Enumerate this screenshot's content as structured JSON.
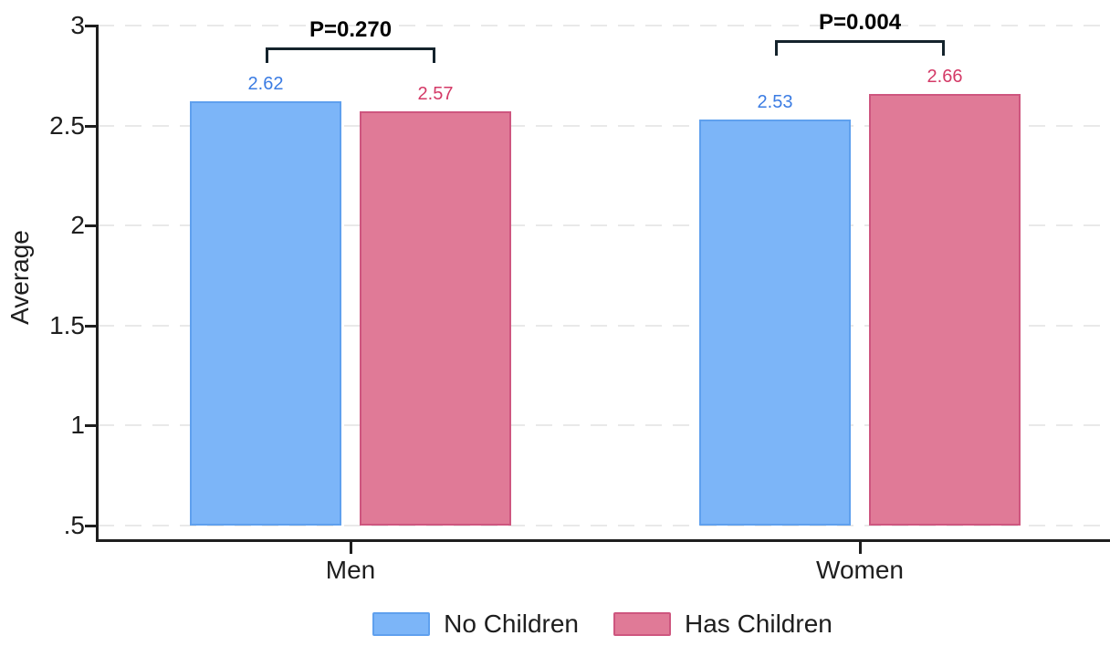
{
  "chart_data": {
    "type": "bar",
    "title": "",
    "ylabel": "Average",
    "categories": [
      "Men",
      "Women"
    ],
    "series": [
      {
        "name": "No Children",
        "values": [
          2.62,
          2.53
        ],
        "value_labels": [
          "2.62",
          "2.53"
        ],
        "fill": "#7CB5F8",
        "border": "#5FA0EE",
        "label_color": "#3B7CE3"
      },
      {
        "name": "Has Children",
        "values": [
          2.57,
          2.66
        ],
        "value_labels": [
          "2.57",
          "2.66"
        ],
        "fill": "#E07A97",
        "border": "#CE567F",
        "label_color": "#D43A67"
      }
    ],
    "annotations": [
      {
        "category": "Men",
        "text": "P=0.270"
      },
      {
        "category": "Women",
        "text": "P=0.004"
      }
    ],
    "yticks": [
      {
        "label": ".5",
        "value": 0.5
      },
      {
        "label": "1",
        "value": 1
      },
      {
        "label": "1.5",
        "value": 1.5
      },
      {
        "label": "2",
        "value": 2
      },
      {
        "label": "2.5",
        "value": 2.5
      },
      {
        "label": "3",
        "value": 3
      }
    ],
    "ylim": [
      0.5,
      3
    ],
    "grid": "horizontal-dashed",
    "legend_position": "bottom-center",
    "colors": {
      "axis": "#1e1e1e",
      "grid": "#e9e9e9",
      "bracket": "#14232c",
      "pvalue_text": "#000000",
      "background": "#ffffff"
    }
  }
}
